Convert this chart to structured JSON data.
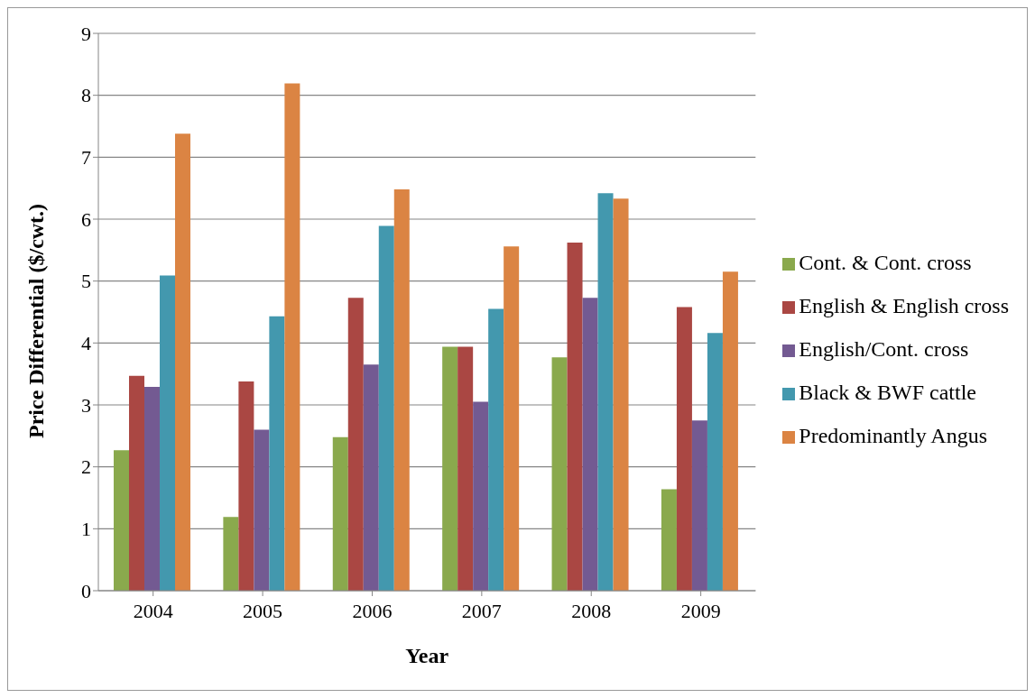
{
  "chart_data": {
    "type": "bar",
    "xlabel": "Year",
    "ylabel": "Price Differential ($/cwt.)",
    "categories": [
      "2004",
      "2005",
      "2006",
      "2007",
      "2008",
      "2009"
    ],
    "series": [
      {
        "name": "Cont. & Cont. cross",
        "color": "#8aa94d",
        "values": [
          2.27,
          1.19,
          2.48,
          3.94,
          3.77,
          1.64
        ]
      },
      {
        "name": "English & English cross",
        "color": "#aa4743",
        "values": [
          3.47,
          3.38,
          4.73,
          3.94,
          5.62,
          4.58
        ]
      },
      {
        "name": "English/Cont. cross",
        "color": "#735a92",
        "values": [
          3.29,
          2.6,
          3.65,
          3.05,
          4.73,
          2.75
        ]
      },
      {
        "name": "Black & BWF cattle",
        "color": "#4398ae",
        "values": [
          5.09,
          4.43,
          5.89,
          4.55,
          6.42,
          4.16
        ]
      },
      {
        "name": "Predominantly Angus",
        "color": "#db8443",
        "values": [
          7.38,
          8.19,
          6.48,
          5.56,
          6.33,
          5.15
        ]
      }
    ],
    "ylim": [
      0,
      9
    ],
    "yticks": [
      0,
      1,
      2,
      3,
      4,
      5,
      6,
      7,
      8,
      9
    ],
    "grid": "y",
    "legend": "right"
  }
}
